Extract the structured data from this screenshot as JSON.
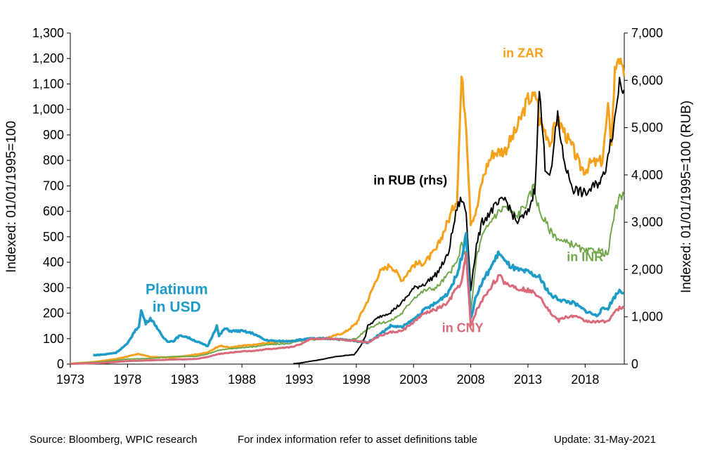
{
  "chart_data": {
    "type": "line",
    "x_range": [
      1973,
      2021.42
    ],
    "x_ticks": [
      "1973",
      "1978",
      "1983",
      "1988",
      "1993",
      "1998",
      "2003",
      "2008",
      "2013",
      "2018"
    ],
    "y_left": {
      "label": "Indexed:  01/01/1995=100",
      "range": [
        0,
        1300
      ],
      "ticks": [
        "0",
        "100",
        "200",
        "300",
        "400",
        "500",
        "600",
        "700",
        "800",
        "900",
        "1,000",
        "1,100",
        "1,200",
        "1,300"
      ]
    },
    "y_right": {
      "label": "Indexed:  01/01/1995=100  (RUB)",
      "range": [
        0,
        7000
      ],
      "ticks": [
        "0",
        "1,000",
        "2,000",
        "3,000",
        "4,000",
        "5,000",
        "6,000",
        "7,000"
      ]
    },
    "grid": false,
    "series": [
      {
        "name": "in ZAR",
        "color": "#f5a11c",
        "axis": "left",
        "width": 3,
        "points": [
          [
            1973,
            2
          ],
          [
            1975,
            8
          ],
          [
            1977,
            20
          ],
          [
            1979,
            40
          ],
          [
            1980,
            28
          ],
          [
            1982,
            26
          ],
          [
            1984,
            38
          ],
          [
            1985,
            45
          ],
          [
            1986,
            72
          ],
          [
            1987,
            65
          ],
          [
            1988,
            72
          ],
          [
            1989,
            75
          ],
          [
            1990,
            82
          ],
          [
            1991,
            85
          ],
          [
            1992,
            90
          ],
          [
            1993,
            95
          ],
          [
            1994,
            100
          ],
          [
            1995,
            100
          ],
          [
            1996,
            110
          ],
          [
            1997,
            125
          ],
          [
            1998,
            160
          ],
          [
            1999,
            250
          ],
          [
            2000,
            360
          ],
          [
            2001,
            390
          ],
          [
            2002,
            330
          ],
          [
            2003,
            390
          ],
          [
            2004,
            400
          ],
          [
            2005,
            450
          ],
          [
            2006,
            560
          ],
          [
            2006.8,
            650
          ],
          [
            2007.2,
            1130
          ],
          [
            2007.6,
            950
          ],
          [
            2008,
            560
          ],
          [
            2008.5,
            600
          ],
          [
            2009,
            720
          ],
          [
            2009.5,
            790
          ],
          [
            2010,
            830
          ],
          [
            2011,
            840
          ],
          [
            2012,
            920
          ],
          [
            2013,
            1040
          ],
          [
            2013.8,
            1050
          ],
          [
            2014,
            960
          ],
          [
            2015,
            870
          ],
          [
            2015.5,
            960
          ],
          [
            2016,
            930
          ],
          [
            2016.5,
            880
          ],
          [
            2017,
            840
          ],
          [
            2017.5,
            780
          ],
          [
            2018,
            760
          ],
          [
            2018.5,
            790
          ],
          [
            2019,
            790
          ],
          [
            2019.5,
            800
          ],
          [
            2020,
            1000
          ],
          [
            2020.3,
            880
          ],
          [
            2020.6,
            1150
          ],
          [
            2020.9,
            1220
          ],
          [
            2021.2,
            1150
          ],
          [
            2021.4,
            1130
          ]
        ]
      },
      {
        "name": "in INR",
        "color": "#70a84b",
        "axis": "left",
        "width": 2,
        "points": [
          [
            1973,
            2
          ],
          [
            1976,
            10
          ],
          [
            1978,
            20
          ],
          [
            1980,
            22
          ],
          [
            1982,
            30
          ],
          [
            1984,
            30
          ],
          [
            1985,
            40
          ],
          [
            1986,
            55
          ],
          [
            1987,
            60
          ],
          [
            1988,
            65
          ],
          [
            1989,
            68
          ],
          [
            1990,
            75
          ],
          [
            1991,
            78
          ],
          [
            1992,
            80
          ],
          [
            1993,
            90
          ],
          [
            1994,
            95
          ],
          [
            1995,
            100
          ],
          [
            1996,
            100
          ],
          [
            1997,
            95
          ],
          [
            1998,
            100
          ],
          [
            1999,
            140
          ],
          [
            2000,
            160
          ],
          [
            2001,
            170
          ],
          [
            2002,
            200
          ],
          [
            2003,
            260
          ],
          [
            2004,
            290
          ],
          [
            2005,
            300
          ],
          [
            2006,
            350
          ],
          [
            2006.8,
            400
          ],
          [
            2007.2,
            470
          ],
          [
            2007.6,
            420
          ],
          [
            2008,
            200
          ],
          [
            2008.5,
            420
          ],
          [
            2009,
            500
          ],
          [
            2010,
            580
          ],
          [
            2011,
            620
          ],
          [
            2012,
            580
          ],
          [
            2013,
            640
          ],
          [
            2013.5,
            700
          ],
          [
            2014,
            600
          ],
          [
            2015,
            520
          ],
          [
            2016,
            480
          ],
          [
            2017,
            470
          ],
          [
            2018,
            440
          ],
          [
            2019,
            450
          ],
          [
            2020,
            430
          ],
          [
            2020.5,
            580
          ],
          [
            2021,
            650
          ],
          [
            2021.4,
            660
          ]
        ]
      },
      {
        "name": "in RUB (rhs)",
        "color": "#000000",
        "axis": "right",
        "width": 2,
        "points": [
          [
            1992.5,
            10
          ],
          [
            1993,
            20
          ],
          [
            1994,
            60
          ],
          [
            1995,
            100
          ],
          [
            1996,
            150
          ],
          [
            1997,
            180
          ],
          [
            1997.8,
            200
          ],
          [
            1998.3,
            350
          ],
          [
            1998.8,
            600
          ],
          [
            1999,
            800
          ],
          [
            2000,
            1000
          ],
          [
            2001,
            1100
          ],
          [
            2002,
            1300
          ],
          [
            2003,
            1600
          ],
          [
            2004,
            1700
          ],
          [
            2005,
            1900
          ],
          [
            2006,
            2300
          ],
          [
            2006.8,
            3300
          ],
          [
            2007.2,
            3500
          ],
          [
            2007.6,
            3200
          ],
          [
            2008,
            1600
          ],
          [
            2008.5,
            2500
          ],
          [
            2009,
            3000
          ],
          [
            2010,
            3300
          ],
          [
            2011,
            3500
          ],
          [
            2012,
            3000
          ],
          [
            2013,
            3200
          ],
          [
            2013.6,
            3700
          ],
          [
            2014,
            5800
          ],
          [
            2014.5,
            4200
          ],
          [
            2015,
            4000
          ],
          [
            2015.6,
            5300
          ],
          [
            2016,
            4500
          ],
          [
            2016.5,
            4000
          ],
          [
            2017,
            3700
          ],
          [
            2018,
            3600
          ],
          [
            2019,
            3800
          ],
          [
            2019.7,
            4000
          ],
          [
            2020,
            4500
          ],
          [
            2020.5,
            5000
          ],
          [
            2021,
            6000
          ],
          [
            2021.4,
            5800
          ]
        ]
      },
      {
        "name": "Platinum in USD",
        "color": "#1e9bc7",
        "axis": "left",
        "width": 3.5,
        "points": [
          [
            1975,
            35
          ],
          [
            1976,
            38
          ],
          [
            1977,
            45
          ],
          [
            1978,
            80
          ],
          [
            1978.5,
            120
          ],
          [
            1979,
            150
          ],
          [
            1979.2,
            210
          ],
          [
            1979.6,
            160
          ],
          [
            1980,
            180
          ],
          [
            1980.5,
            150
          ],
          [
            1981,
            110
          ],
          [
            1981.5,
            90
          ],
          [
            1982,
            90
          ],
          [
            1982.5,
            110
          ],
          [
            1983,
            110
          ],
          [
            1984,
            90
          ],
          [
            1985,
            70
          ],
          [
            1985.8,
            150
          ],
          [
            1986,
            110
          ],
          [
            1986.5,
            140
          ],
          [
            1987,
            130
          ],
          [
            1988,
            130
          ],
          [
            1989,
            120
          ],
          [
            1990,
            95
          ],
          [
            1991,
            90
          ],
          [
            1992,
            90
          ],
          [
            1993,
            95
          ],
          [
            1994,
            100
          ],
          [
            1995,
            100
          ],
          [
            1996,
            100
          ],
          [
            1997,
            95
          ],
          [
            1998,
            90
          ],
          [
            1999,
            85
          ],
          [
            2000,
            115
          ],
          [
            2001,
            150
          ],
          [
            2002,
            145
          ],
          [
            2003,
            175
          ],
          [
            2004,
            215
          ],
          [
            2005,
            240
          ],
          [
            2006,
            280
          ],
          [
            2006.8,
            350
          ],
          [
            2007.2,
            420
          ],
          [
            2007.6,
            520
          ],
          [
            2008,
            180
          ],
          [
            2008.5,
            270
          ],
          [
            2009,
            320
          ],
          [
            2010,
            400
          ],
          [
            2010.5,
            440
          ],
          [
            2011,
            400
          ],
          [
            2012,
            370
          ],
          [
            2013,
            360
          ],
          [
            2014,
            340
          ],
          [
            2015,
            270
          ],
          [
            2016,
            250
          ],
          [
            2017,
            240
          ],
          [
            2018,
            210
          ],
          [
            2019,
            190
          ],
          [
            2019.5,
            215
          ],
          [
            2020,
            220
          ],
          [
            2020.5,
            260
          ],
          [
            2021,
            290
          ],
          [
            2021.4,
            280
          ]
        ]
      },
      {
        "name": "in CNY",
        "color": "#d96a7a",
        "axis": "left",
        "width": 3,
        "points": [
          [
            1973,
            1
          ],
          [
            1976,
            5
          ],
          [
            1978,
            12
          ],
          [
            1980,
            15
          ],
          [
            1982,
            18
          ],
          [
            1984,
            20
          ],
          [
            1985,
            28
          ],
          [
            1986,
            40
          ],
          [
            1987,
            45
          ],
          [
            1988,
            50
          ],
          [
            1989,
            52
          ],
          [
            1990,
            58
          ],
          [
            1991,
            60
          ],
          [
            1992,
            65
          ],
          [
            1993,
            75
          ],
          [
            1994,
            100
          ],
          [
            1995,
            100
          ],
          [
            1996,
            100
          ],
          [
            1997,
            95
          ],
          [
            1998,
            92
          ],
          [
            1999,
            85
          ],
          [
            2000,
            110
          ],
          [
            2001,
            125
          ],
          [
            2002,
            130
          ],
          [
            2003,
            165
          ],
          [
            2004,
            200
          ],
          [
            2005,
            215
          ],
          [
            2006,
            240
          ],
          [
            2006.8,
            300
          ],
          [
            2007.2,
            320
          ],
          [
            2007.6,
            430
          ],
          [
            2008,
            150
          ],
          [
            2008.5,
            210
          ],
          [
            2009,
            250
          ],
          [
            2010,
            320
          ],
          [
            2010.5,
            345
          ],
          [
            2011,
            320
          ],
          [
            2012,
            300
          ],
          [
            2013,
            290
          ],
          [
            2014,
            270
          ],
          [
            2015,
            200
          ],
          [
            2015.7,
            170
          ],
          [
            2016,
            180
          ],
          [
            2017,
            190
          ],
          [
            2018,
            170
          ],
          [
            2019,
            165
          ],
          [
            2020,
            170
          ],
          [
            2020.5,
            200
          ],
          [
            2021,
            220
          ],
          [
            2021.4,
            220
          ]
        ]
      }
    ],
    "series_labels": [
      {
        "text": "in ZAR",
        "color": "#f5a11c",
        "x": 2010.8,
        "y": 1205,
        "anchor": "start"
      },
      {
        "text": "in RUB (rhs)",
        "color": "#000000",
        "x": 1999.5,
        "y": 705,
        "anchor": "start"
      },
      {
        "text": "in INR",
        "color": "#70a84b",
        "x": 2016.4,
        "y": 405,
        "anchor": "start"
      },
      {
        "text": "Platinum",
        "color": "#1e9bc7",
        "x": 1982.3,
        "y": 275,
        "anchor": "middle"
      },
      {
        "text": "in USD",
        "color": "#1e9bc7",
        "x": 1982.3,
        "y": 205,
        "anchor": "middle"
      },
      {
        "text": "in CNY",
        "color": "#d96a7a",
        "x": 2007.3,
        "y": 125,
        "anchor": "middle"
      }
    ]
  },
  "footer": {
    "source": "Source: Bloomberg, WPIC research",
    "note": "For index information refer to asset definitions table",
    "update": "Update: 31-May-2021"
  }
}
